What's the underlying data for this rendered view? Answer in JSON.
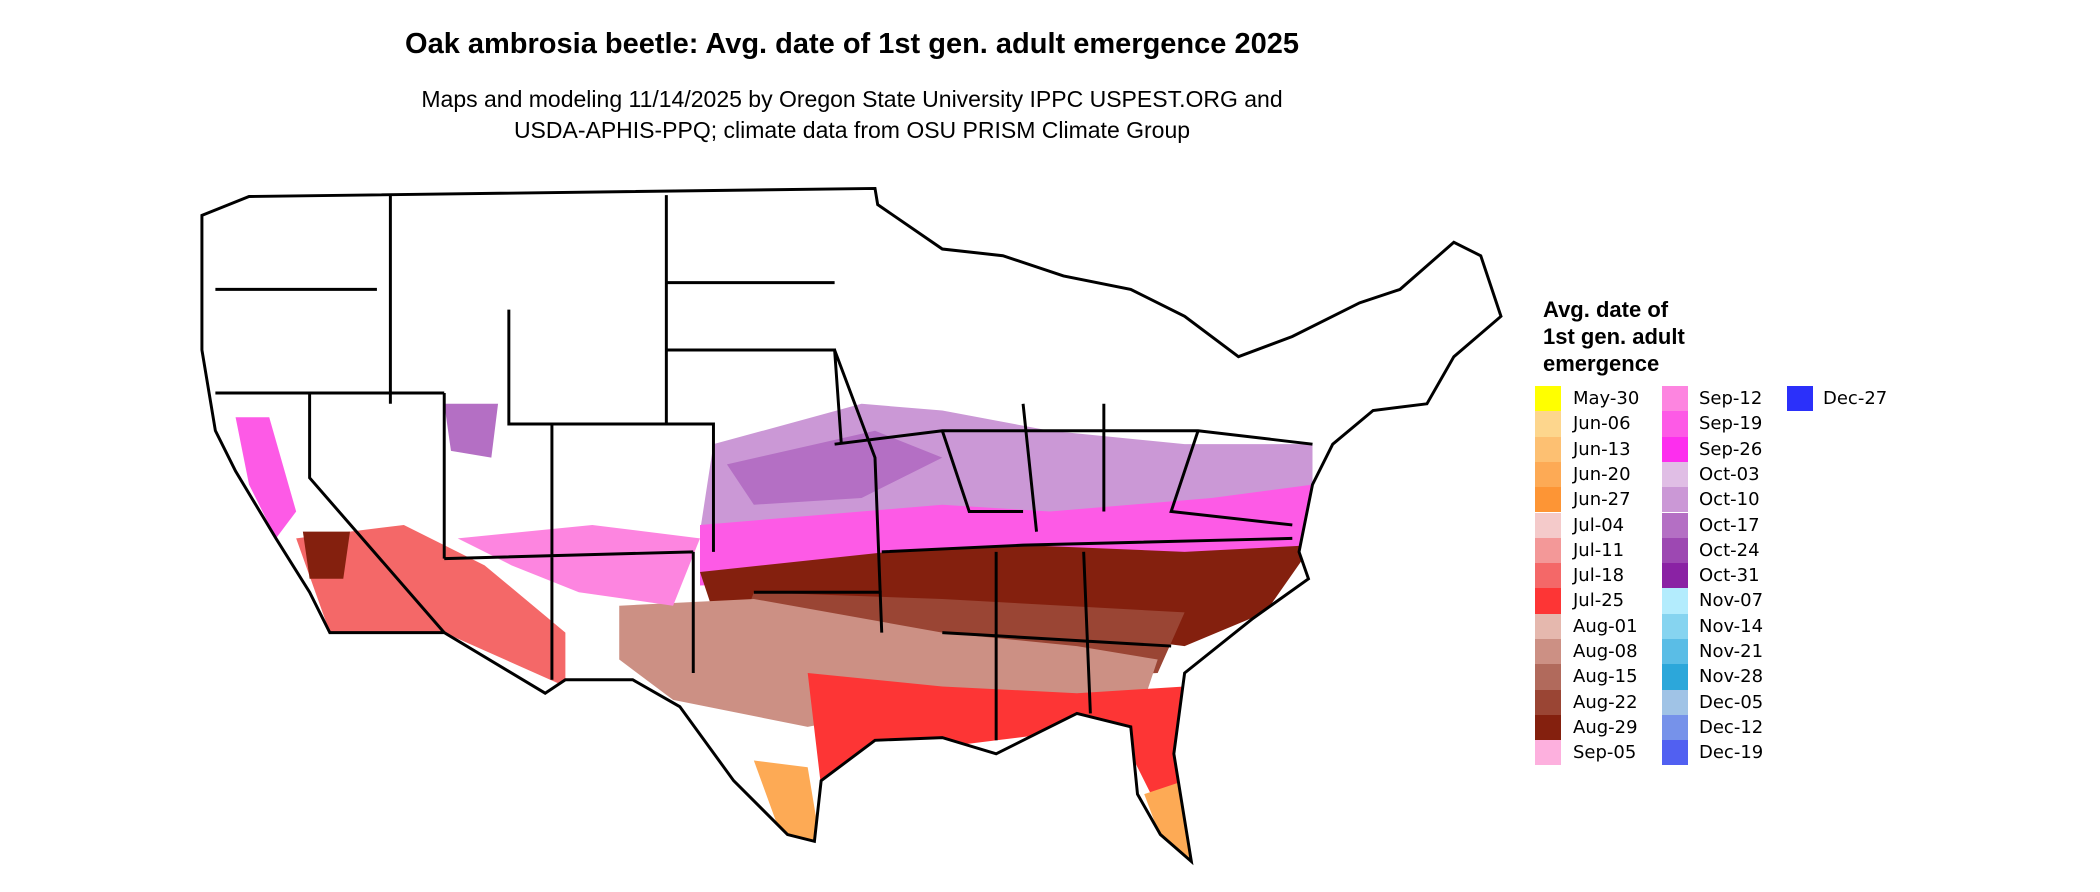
{
  "title": "Oak ambrosia beetle: Avg. date of 1st gen. adult emergence 2025",
  "subtitle": [
    "Maps and modeling 11/14/2025 by Oregon State University IPPC USPEST.ORG and",
    "USDA-APHIS-PPQ; climate data from OSU PRISM Climate Group"
  ],
  "legend": {
    "title": [
      "Avg. date of",
      "1st gen. adult",
      "emergence"
    ],
    "items": [
      {
        "label": "May-30",
        "color": "#FFFF00"
      },
      {
        "label": "Jun-06",
        "color": "#FDD68D"
      },
      {
        "label": "Jun-13",
        "color": "#FDC072"
      },
      {
        "label": "Jun-20",
        "color": "#FDAA55"
      },
      {
        "label": "Jun-27",
        "color": "#FD9535"
      },
      {
        "label": "Jul-04",
        "color": "#F4CACA"
      },
      {
        "label": "Jul-11",
        "color": "#F39898"
      },
      {
        "label": "Jul-18",
        "color": "#F46868"
      },
      {
        "label": "Jul-25",
        "color": "#FD3535"
      },
      {
        "label": "Aug-01",
        "color": "#E5B8AE"
      },
      {
        "label": "Aug-08",
        "color": "#CC9084"
      },
      {
        "label": "Aug-15",
        "color": "#B16A5C"
      },
      {
        "label": "Aug-22",
        "color": "#9A4534"
      },
      {
        "label": "Aug-29",
        "color": "#84200E"
      },
      {
        "label": "Sep-05",
        "color": "#FDB0DE"
      },
      {
        "label": "Sep-12",
        "color": "#FD85E0"
      },
      {
        "label": "Sep-19",
        "color": "#FD5AE6"
      },
      {
        "label": "Sep-26",
        "color": "#FD2EEE"
      },
      {
        "label": "Oct-03",
        "color": "#E0BEE5"
      },
      {
        "label": "Oct-10",
        "color": "#CB98D6"
      },
      {
        "label": "Oct-17",
        "color": "#B46FC4"
      },
      {
        "label": "Oct-24",
        "color": "#9D48B2"
      },
      {
        "label": "Oct-31",
        "color": "#8A22A4"
      },
      {
        "label": "Nov-07",
        "color": "#B3ECFD"
      },
      {
        "label": "Nov-14",
        "color": "#86D4F0"
      },
      {
        "label": "Nov-21",
        "color": "#5ABDE6"
      },
      {
        "label": "Nov-28",
        "color": "#2CA7DA"
      },
      {
        "label": "Dec-05",
        "color": "#A0C3E6"
      },
      {
        "label": "Dec-12",
        "color": "#7692EA"
      },
      {
        "label": "Dec-19",
        "color": "#5160F1"
      },
      {
        "label": "Dec-27",
        "color": "#2B30FA"
      }
    ]
  }
}
